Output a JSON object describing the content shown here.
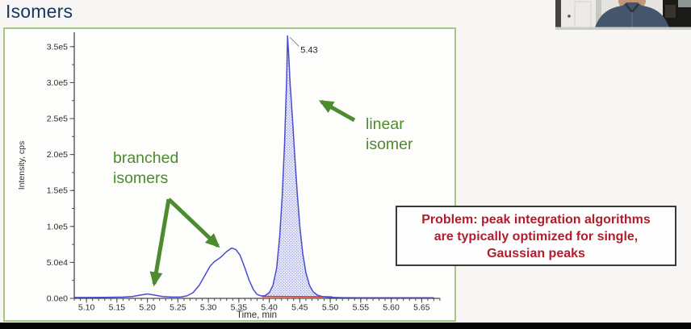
{
  "slide": {
    "title": "Isomers"
  },
  "colors": {
    "title": "#17365d",
    "frame_green": "#a9c489",
    "trace_blue": "#4a4cd0",
    "peak_fill_bg": "#e9eaf8",
    "peak_fill_dot": "#9397de",
    "baseline_red": "#d4402e",
    "annotation_green": "#4e8a2e",
    "problem_red": "#b01e2e",
    "axis": "#4a4a4a"
  },
  "chart_data": {
    "type": "line",
    "title": "",
    "xlabel": "Time, min",
    "ylabel": "Intensity, cps",
    "xlim": [
      5.08,
      5.68
    ],
    "ylim": [
      0,
      370000
    ],
    "grid": false,
    "legend": false,
    "x_ticks": [
      "5.10",
      "5.15",
      "5.20",
      "5.25",
      "5.30",
      "5.35",
      "5.40",
      "5.45",
      "5.50",
      "5.55",
      "5.60",
      "5.65"
    ],
    "y_ticks": [
      "0.0e0",
      "5.0e4",
      "1.0e5",
      "1.5e5",
      "2.0e5",
      "2.5e5",
      "3.0e5",
      "3.5e5"
    ],
    "series": [
      {
        "id": "chromatogram-trace",
        "color": "#4a4cd0",
        "points": [
          [
            5.08,
            1200
          ],
          [
            5.1,
            1200
          ],
          [
            5.13,
            1400
          ],
          [
            5.16,
            1800
          ],
          [
            5.175,
            2600
          ],
          [
            5.19,
            4800
          ],
          [
            5.2,
            6200
          ],
          [
            5.21,
            4800
          ],
          [
            5.225,
            2600
          ],
          [
            5.24,
            1800
          ],
          [
            5.255,
            2000
          ],
          [
            5.265,
            3500
          ],
          [
            5.275,
            8000
          ],
          [
            5.285,
            18000
          ],
          [
            5.295,
            33000
          ],
          [
            5.303,
            45000
          ],
          [
            5.31,
            51000
          ],
          [
            5.32,
            57000
          ],
          [
            5.33,
            65000
          ],
          [
            5.338,
            70000
          ],
          [
            5.345,
            68000
          ],
          [
            5.352,
            60000
          ],
          [
            5.36,
            42000
          ],
          [
            5.367,
            25000
          ],
          [
            5.374,
            12000
          ],
          [
            5.38,
            5500
          ],
          [
            5.387,
            3200
          ],
          [
            5.393,
            3800
          ],
          [
            5.4,
            8000
          ],
          [
            5.406,
            18000
          ],
          [
            5.412,
            42000
          ],
          [
            5.417,
            85000
          ],
          [
            5.421,
            140000
          ],
          [
            5.425,
            215000
          ],
          [
            5.4285,
            305000
          ],
          [
            5.43,
            365000
          ],
          [
            5.4318,
            340000
          ],
          [
            5.434,
            300000
          ],
          [
            5.438,
            250000
          ],
          [
            5.442,
            195000
          ],
          [
            5.446,
            145000
          ],
          [
            5.45,
            100000
          ],
          [
            5.455,
            62000
          ],
          [
            5.46,
            36000
          ],
          [
            5.466,
            18000
          ],
          [
            5.472,
            9000
          ],
          [
            5.479,
            4500
          ],
          [
            5.487,
            2500
          ],
          [
            5.495,
            1600
          ],
          [
            5.503,
            1300
          ],
          [
            5.52,
            1000
          ],
          [
            5.55,
            900
          ],
          [
            5.59,
            900
          ],
          [
            5.63,
            900
          ],
          [
            5.67,
            900
          ]
        ]
      },
      {
        "id": "integration-baseline",
        "color": "#d4402e",
        "points": [
          [
            5.388,
            2600
          ],
          [
            5.503,
            2100
          ]
        ]
      }
    ],
    "fill_region": {
      "series": "chromatogram-trace",
      "from": 5.39,
      "to": 5.503,
      "baseline": 2400
    },
    "peak_label": {
      "text": "5.43",
      "time": 5.43,
      "intensity": 365000
    },
    "annotations": [
      {
        "id": "branched-isomers",
        "lines": [
          "branched",
          "isomers"
        ]
      },
      {
        "id": "linear-isomer",
        "lines": [
          "linear",
          "isomer"
        ]
      }
    ]
  },
  "problem_box": {
    "lines": [
      "Problem: peak integration algorithms",
      "are typically optimized for single,",
      "Gaussian peaks"
    ]
  }
}
